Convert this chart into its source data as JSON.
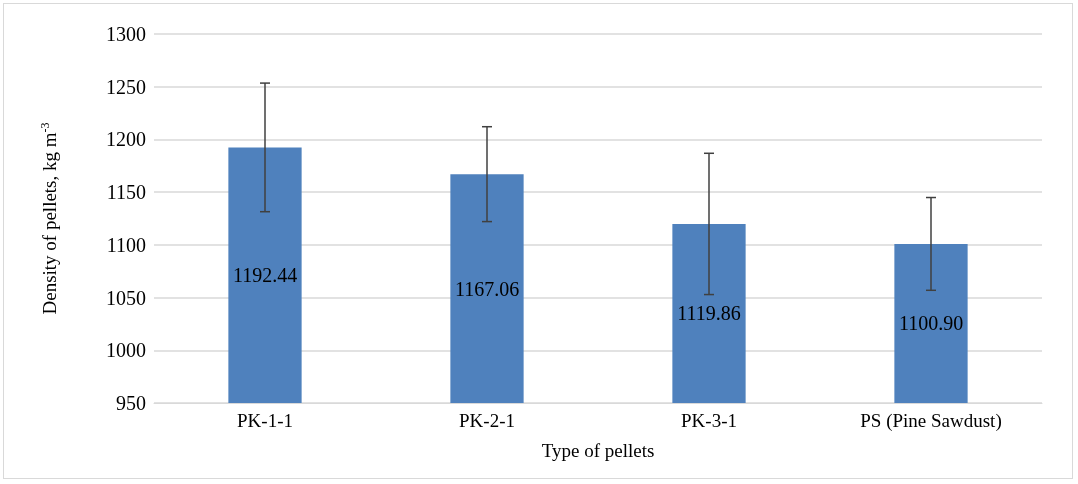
{
  "chart_data": {
    "type": "bar",
    "xlabel": "Type of pellets",
    "ylabel": "Density of pellets, kg m$^{-3}$",
    "categories": [
      "PK-1-1",
      "PK-2-1",
      "PK-3-1",
      "PS (Pine Sawdust)"
    ],
    "values": [
      1192.44,
      1167.06,
      1119.86,
      1100.9
    ],
    "value_labels": [
      "1192.44",
      "1167.06",
      "1119.86",
      "1100.90"
    ],
    "errors": [
      61,
      45,
      67,
      44
    ],
    "color": "#4f81bd",
    "ylim": [
      950,
      1300
    ],
    "yticks": [
      950,
      1000,
      1050,
      1100,
      1150,
      1200,
      1250,
      1300
    ],
    "grid": "y"
  }
}
